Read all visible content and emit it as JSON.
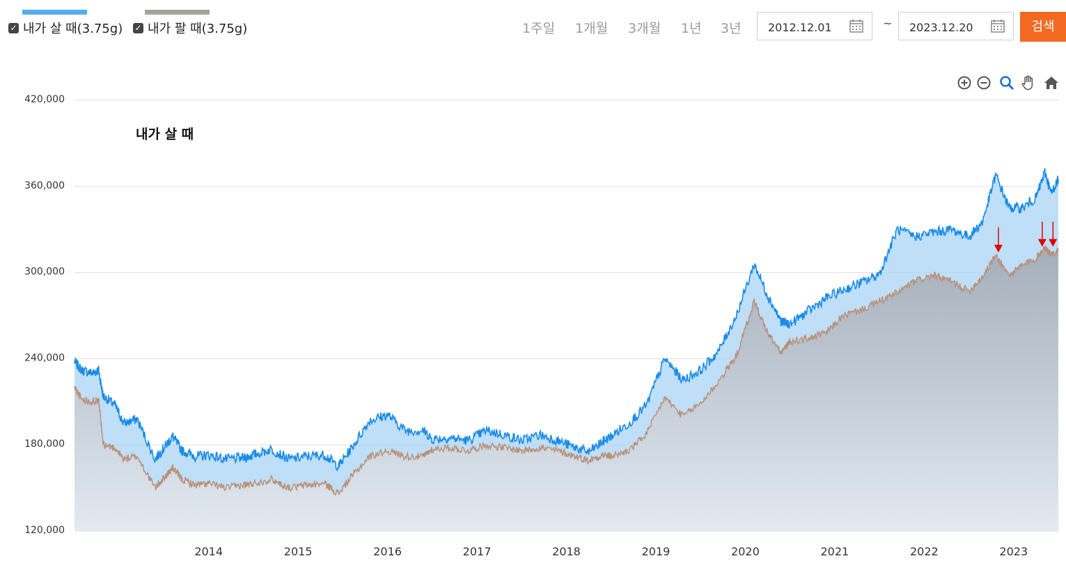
{
  "legend": {
    "items": [
      {
        "label": "내가 살 때(3.75g)",
        "color": "#55aef0",
        "checked": true
      },
      {
        "label": "내가 팔 때(3.75g)",
        "color": "#a8a29c",
        "checked": true
      }
    ]
  },
  "periods": [
    "1주일",
    "1개월",
    "3개월",
    "1년",
    "3년"
  ],
  "date_range": {
    "start": "2012.12.01",
    "separator": "~",
    "end": "2023.12.20"
  },
  "search_label": "검색",
  "toolbar_icons": [
    "zoom-in-icon",
    "zoom-out-icon",
    "magnifier-icon",
    "pan-hand-icon",
    "home-icon"
  ],
  "chart_data": {
    "type": "area",
    "annotation": "내가 살 때",
    "y_ticks": [
      "420,000",
      "360,000",
      "300,000",
      "240,000",
      "180,000",
      "120,000"
    ],
    "ylim": [
      120000,
      420000
    ],
    "x_ticks": [
      "2014",
      "2015",
      "2016",
      "2017",
      "2018",
      "2019",
      "2020",
      "2021",
      "2022",
      "2023"
    ],
    "xlim": [
      2013.0,
      2024.0
    ],
    "grid": true,
    "colors": {
      "buy_line": "#1a8be8",
      "buy_fill": "#a9d4f6",
      "sell_line": "#b99078",
      "sell_fill": "#aab4c0"
    },
    "series": [
      {
        "name": "내가 살 때(3.75g)",
        "x": [
          2013.0,
          2013.08,
          2013.2,
          2013.27,
          2013.32,
          2013.45,
          2013.55,
          2013.7,
          2013.9,
          2014.0,
          2014.1,
          2014.2,
          2014.35,
          2014.5,
          2014.7,
          2014.9,
          2015.0,
          2015.2,
          2015.4,
          2015.6,
          2015.8,
          2015.95,
          2016.1,
          2016.3,
          2016.5,
          2016.7,
          2016.9,
          2017.0,
          2017.2,
          2017.4,
          2017.6,
          2017.8,
          2018.0,
          2018.2,
          2018.4,
          2018.6,
          2018.75,
          2018.9,
          2019.0,
          2019.2,
          2019.4,
          2019.6,
          2019.8,
          2020.0,
          2020.2,
          2020.4,
          2020.6,
          2020.75,
          2020.9,
          2021.0,
          2021.2,
          2021.4,
          2021.6,
          2021.8,
          2022.0,
          2022.2,
          2022.4,
          2022.6,
          2022.8,
          2023.0,
          2023.15,
          2023.3,
          2023.45,
          2023.6,
          2023.75,
          2023.85,
          2023.92,
          2024.0
        ],
        "y": [
          238000,
          232000,
          230000,
          232000,
          214000,
          208000,
          195000,
          198000,
          170000,
          178000,
          186000,
          176000,
          172000,
          173000,
          170000,
          171000,
          173000,
          177000,
          170000,
          172000,
          173000,
          165000,
          178000,
          197000,
          201000,
          190000,
          190000,
          184000,
          185000,
          183000,
          190000,
          187000,
          183000,
          187000,
          183000,
          178000,
          175000,
          182000,
          186000,
          195000,
          208000,
          240000,
          225000,
          232000,
          245000,
          270000,
          306000,
          284000,
          266000,
          264000,
          273000,
          282000,
          288000,
          293000,
          299000,
          330000,
          325000,
          328000,
          330000,
          325000,
          335000,
          368000,
          345000,
          345000,
          352000,
          370000,
          355000,
          365000
        ]
      },
      {
        "name": "내가 팔 때(3.75g)",
        "x": [
          2013.0,
          2013.08,
          2013.2,
          2013.27,
          2013.32,
          2013.45,
          2013.55,
          2013.7,
          2013.9,
          2014.0,
          2014.1,
          2014.2,
          2014.35,
          2014.5,
          2014.7,
          2014.9,
          2015.0,
          2015.2,
          2015.4,
          2015.6,
          2015.8,
          2015.95,
          2016.1,
          2016.3,
          2016.5,
          2016.7,
          2016.9,
          2017.0,
          2017.2,
          2017.4,
          2017.6,
          2017.8,
          2018.0,
          2018.2,
          2018.4,
          2018.6,
          2018.75,
          2018.9,
          2019.0,
          2019.2,
          2019.4,
          2019.6,
          2019.8,
          2020.0,
          2020.2,
          2020.4,
          2020.6,
          2020.75,
          2020.9,
          2021.0,
          2021.2,
          2021.4,
          2021.6,
          2021.8,
          2022.0,
          2022.2,
          2022.4,
          2022.6,
          2022.8,
          2023.0,
          2023.15,
          2023.3,
          2023.45,
          2023.6,
          2023.75,
          2023.85,
          2023.92,
          2024.0
        ],
        "y": [
          220000,
          212000,
          210000,
          212000,
          180000,
          178000,
          170000,
          172000,
          150000,
          157000,
          164000,
          156000,
          152000,
          153000,
          150000,
          152000,
          153000,
          156000,
          150000,
          152000,
          153000,
          146000,
          158000,
          172000,
          176000,
          172000,
          172000,
          177000,
          178000,
          176000,
          180000,
          178000,
          176000,
          178000,
          176000,
          172000,
          169000,
          173000,
          172000,
          176000,
          188000,
          213000,
          200000,
          209000,
          224000,
          242000,
          280000,
          258000,
          244000,
          252000,
          254000,
          258000,
          270000,
          274000,
          280000,
          286000,
          294000,
          298000,
          294000,
          287000,
          297000,
          312000,
          298000,
          305000,
          310000,
          318000,
          312000,
          316000
        ]
      }
    ],
    "markers": [
      {
        "x": 2023.33,
        "y": 314000,
        "color": "#e00000"
      },
      {
        "x": 2023.82,
        "y": 318000,
        "color": "#e00000"
      },
      {
        "x": 2023.94,
        "y": 318000,
        "color": "#e00000"
      }
    ]
  }
}
